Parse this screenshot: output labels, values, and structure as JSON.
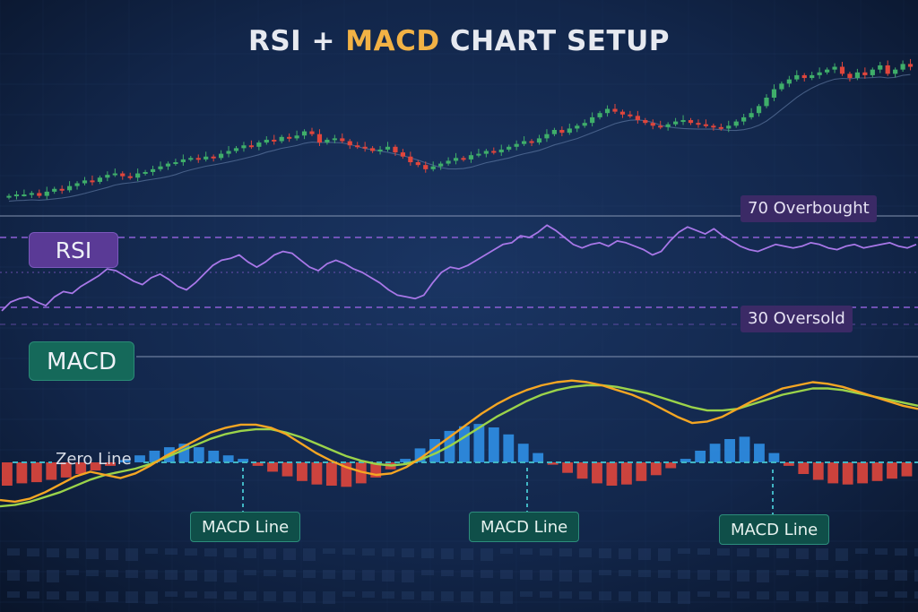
{
  "title": {
    "part1": "RSI +",
    "part2": "MACD",
    "part3": "CHART SETUP"
  },
  "labels": {
    "rsi": "RSI",
    "macd": "MACD",
    "overbought": "70 Overbought",
    "oversold": "30 Oversold",
    "zero_line": "Zero Line",
    "macd_line_1": "MACD Line",
    "macd_line_2": "MACD Line",
    "macd_line_3": "MACD Line"
  },
  "colors": {
    "background": "#0d1b33",
    "candle_up": "#3fae6a",
    "candle_down": "#e0463c",
    "rsi_line": "#a877e8",
    "rsi_level": "#8e5fd6",
    "macd_line": "#f5a623",
    "signal_line": "#9bd34a",
    "hist_positive": "#2f8fe6",
    "hist_negative": "#e0463c",
    "zero_line": "#41b6c4",
    "title_accent": "#f2b245"
  },
  "chart_data": {
    "type": "line",
    "panels": [
      "price",
      "rsi",
      "macd"
    ],
    "price_candles": {
      "close": [
        20,
        21,
        21,
        22,
        20,
        23,
        25,
        24,
        27,
        29,
        31,
        30,
        33,
        35,
        36,
        34,
        33,
        36,
        37,
        39,
        41,
        43,
        44,
        46,
        47,
        46,
        48,
        47,
        50,
        52,
        54,
        56,
        55,
        58,
        60,
        59,
        62,
        61,
        63,
        66,
        64,
        58,
        60,
        61,
        59,
        56,
        55,
        54,
        52,
        53,
        55,
        51,
        48,
        44,
        42,
        39,
        41,
        43,
        45,
        47,
        46,
        49,
        50,
        52,
        51,
        53,
        55,
        57,
        59,
        58,
        61,
        64,
        67,
        65,
        68,
        70,
        72,
        76,
        79,
        82,
        80,
        78,
        77,
        74,
        72,
        70,
        69,
        71,
        73,
        74,
        72,
        71,
        70,
        69,
        68,
        70,
        73,
        76,
        79,
        84,
        90,
        96,
        100,
        103,
        106,
        104,
        106,
        108,
        110,
        112,
        107,
        104,
        108,
        106,
        110,
        113,
        107,
        110,
        114,
        112
      ]
    },
    "rsi": {
      "levels": [
        70,
        30
      ],
      "values": [
        28,
        33,
        35,
        36,
        33,
        31,
        36,
        39,
        38,
        42,
        45,
        48,
        52,
        51,
        48,
        45,
        43,
        47,
        49,
        46,
        42,
        40,
        44,
        49,
        54,
        57,
        58,
        60,
        56,
        53,
        56,
        60,
        62,
        61,
        57,
        53,
        51,
        55,
        57,
        55,
        52,
        50,
        47,
        44,
        40,
        37,
        36,
        35,
        37,
        44,
        50,
        53,
        52,
        54,
        57,
        60,
        63,
        66,
        67,
        71,
        70,
        73,
        77,
        74,
        70,
        66,
        64,
        66,
        67,
        65,
        68,
        67,
        65,
        63,
        60,
        62,
        68,
        73,
        76,
        74,
        72,
        75,
        71,
        68,
        65,
        63,
        62,
        64,
        66,
        65,
        64,
        65,
        67,
        66,
        64,
        63,
        65,
        66,
        64,
        65,
        66,
        67,
        65,
        64,
        66
      ]
    },
    "macd": {
      "zero": 0,
      "macd_line": [
        -2.4,
        -2.5,
        -2.3,
        -1.9,
        -1.4,
        -0.9,
        -0.6,
        -0.8,
        -1.0,
        -0.7,
        -0.2,
        0.4,
        0.9,
        1.4,
        1.9,
        2.2,
        2.4,
        2.4,
        2.2,
        1.8,
        1.2,
        0.6,
        0.1,
        -0.3,
        -0.6,
        -0.8,
        -0.7,
        -0.3,
        0.3,
        1.0,
        1.7,
        2.4,
        3.1,
        3.7,
        4.2,
        4.6,
        4.9,
        5.1,
        5.2,
        5.1,
        4.9,
        4.6,
        4.3,
        3.9,
        3.4,
        2.9,
        2.5,
        2.6,
        2.9,
        3.4,
        3.9,
        4.3,
        4.7,
        4.9,
        5.1,
        5.0,
        4.8,
        4.5,
        4.2,
        3.9,
        3.6,
        3.4
      ],
      "signal_line": [
        -2.8,
        -2.7,
        -2.5,
        -2.2,
        -1.9,
        -1.5,
        -1.1,
        -0.8,
        -0.6,
        -0.4,
        -0.1,
        0.3,
        0.7,
        1.1,
        1.5,
        1.8,
        2.0,
        2.1,
        2.1,
        1.9,
        1.6,
        1.2,
        0.8,
        0.4,
        0.1,
        -0.1,
        -0.2,
        -0.1,
        0.2,
        0.6,
        1.1,
        1.7,
        2.3,
        2.9,
        3.4,
        3.9,
        4.3,
        4.6,
        4.8,
        4.9,
        4.9,
        4.8,
        4.6,
        4.4,
        4.1,
        3.8,
        3.5,
        3.3,
        3.3,
        3.4,
        3.7,
        4.0,
        4.3,
        4.5,
        4.7,
        4.7,
        4.6,
        4.4,
        4.2,
        4.0,
        3.8,
        3.6
      ],
      "histogram": [
        -2.0,
        -1.8,
        -1.7,
        -1.5,
        -1.3,
        -1.0,
        -0.7,
        -0.3,
        0.2,
        0.6,
        1.0,
        1.3,
        1.6,
        1.3,
        1.0,
        0.6,
        0.3,
        -0.3,
        -0.8,
        -1.2,
        -1.6,
        -1.9,
        -2.0,
        -2.1,
        -1.8,
        -1.3,
        -0.6,
        0.3,
        1.2,
        2.0,
        2.7,
        3.1,
        3.3,
        3.0,
        2.4,
        1.6,
        0.8,
        -0.2,
        -0.9,
        -1.4,
        -1.8,
        -2.0,
        -1.9,
        -1.6,
        -1.1,
        -0.5,
        0.3,
        1.0,
        1.6,
        2.0,
        2.2,
        1.6,
        0.8,
        -0.3,
        -1.0,
        -1.5,
        -1.8,
        -1.9,
        -1.8,
        -1.6,
        -1.4,
        -1.2
      ]
    }
  }
}
